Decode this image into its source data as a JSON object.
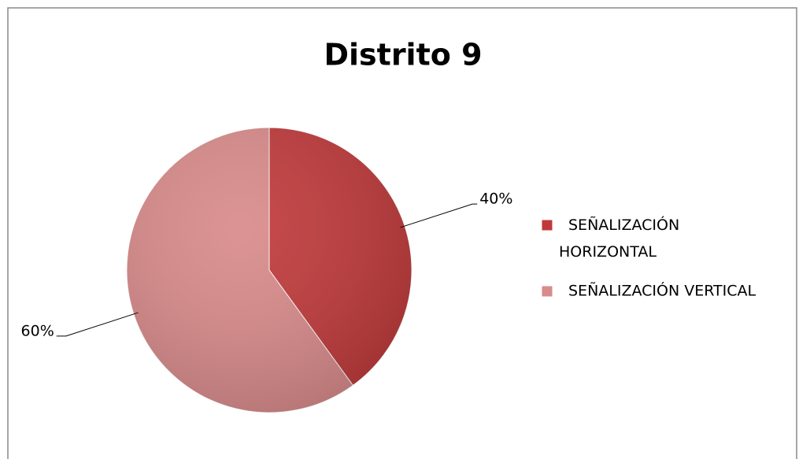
{
  "chart_data": {
    "type": "pie",
    "title": "Distrito 9",
    "categories": [
      "SEÑALIZACIÓN HORIZONTAL",
      "SEÑALIZACIÓN VERTICAL"
    ],
    "values": [
      40,
      60
    ],
    "value_labels": [
      "40%",
      "60%"
    ],
    "colors": [
      "#c0393a",
      "#d98a8a"
    ],
    "legend": "right"
  }
}
